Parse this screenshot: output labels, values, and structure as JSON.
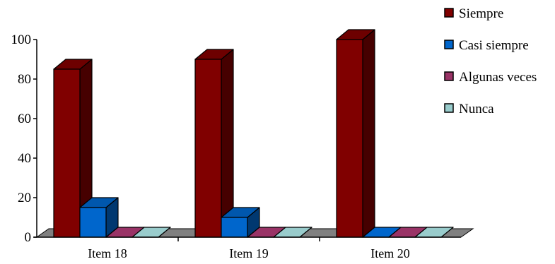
{
  "chart_data": {
    "type": "bar",
    "style": "3d-clustered-column",
    "categories": [
      "Item 18",
      "Item 19",
      "Item 20"
    ],
    "series": [
      {
        "name": "Siempre",
        "values": [
          85,
          90,
          100
        ],
        "color": "#800000"
      },
      {
        "name": "Casi siempre",
        "values": [
          15,
          10,
          0
        ],
        "color": "#0066cc"
      },
      {
        "name": "Algunas veces",
        "values": [
          0,
          0,
          0
        ],
        "color": "#993366"
      },
      {
        "name": "Nunca",
        "values": [
          0,
          0,
          0
        ],
        "color": "#99cccc"
      }
    ],
    "ylim": [
      0,
      100
    ],
    "yticks": [
      "0",
      "20",
      "40",
      "60",
      "80",
      "100"
    ],
    "legend_position": "top-right",
    "grid": false,
    "floor_color": "#808080"
  }
}
